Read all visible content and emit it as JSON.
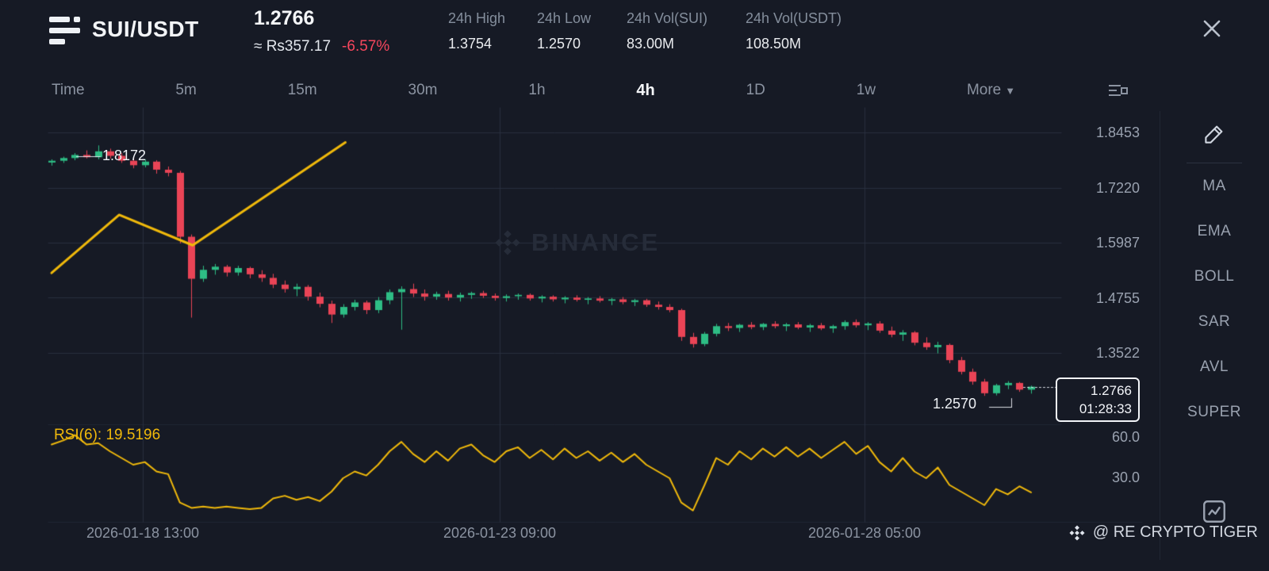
{
  "header": {
    "symbol": "SUI/USDT",
    "price": "1.2766",
    "fiat_price": "≈ Rs357.17",
    "change_pct": "-6.57%",
    "stats": [
      {
        "label": "24h High",
        "value": "1.3754"
      },
      {
        "label": "24h Low",
        "value": "1.2570"
      },
      {
        "label": "24h Vol(SUI)",
        "value": "83.00M"
      },
      {
        "label": "24h Vol(USDT)",
        "value": "108.50M"
      }
    ]
  },
  "timeframes": {
    "items": [
      {
        "label": "Time",
        "active": false
      },
      {
        "label": "5m",
        "active": false
      },
      {
        "label": "15m",
        "active": false
      },
      {
        "label": "30m",
        "active": false
      },
      {
        "label": "1h",
        "active": false
      },
      {
        "label": "4h",
        "active": true
      },
      {
        "label": "1D",
        "active": false
      },
      {
        "label": "1w",
        "active": false
      },
      {
        "label": "More",
        "active": false
      }
    ]
  },
  "chart": {
    "high_label": "1.8172",
    "low_label": "1.2570",
    "price_box": {
      "price": "1.2766",
      "countdown": "01:28:33"
    },
    "watermark": "BINANCE",
    "rsi_label": "RSI(6): 19.5196",
    "y_axis": [
      "1.8453",
      "1.7220",
      "1.5987",
      "1.4755",
      "1.3522"
    ],
    "rsi_axis": [
      "60.0",
      "30.0"
    ],
    "x_axis": [
      "2026-01-18 13:00",
      "2026-01-23 09:00",
      "2026-01-28 05:00"
    ]
  },
  "sidebar": {
    "tools": [
      "MA",
      "EMA",
      "BOLL",
      "SAR",
      "AVL",
      "SUPER"
    ]
  },
  "footer": {
    "credit": "@ RE CRYPTO TIGER"
  },
  "colors": {
    "background": "#161a25",
    "up": "#2ebd85",
    "down": "#ea4456",
    "accent": "#f0b90b",
    "negative": "#f6465d",
    "text_muted": "#848e9c"
  },
  "chart_data": {
    "type": "candlestick",
    "symbol": "SUI/USDT",
    "interval": "4h",
    "legend": [
      "price candles",
      "RSI(6)",
      "drawn trendline"
    ],
    "price_ticks": [
      1.8453,
      1.722,
      1.5987,
      1.4755,
      1.3522
    ],
    "rsi_ticks": [
      60.0,
      30.0
    ],
    "x_tick_labels": [
      "2026-01-18 13:00",
      "2026-01-23 09:00",
      "2026-01-28 05:00"
    ],
    "last_price": 1.2766,
    "low_marker": 1.257,
    "high_marker": 1.8172,
    "countdown": "01:28:33",
    "rsi_period": 6,
    "rsi_value": 19.5196,
    "up_color": "#2ebd85",
    "down_color": "#ea4456",
    "line_color": "#f0b90b",
    "candles_ohlc": [
      [
        1.778,
        1.786,
        1.772,
        1.782
      ],
      [
        1.782,
        1.792,
        1.778,
        1.788
      ],
      [
        1.788,
        1.8,
        1.784,
        1.795
      ],
      [
        1.795,
        1.806,
        1.788,
        1.79
      ],
      [
        1.79,
        1.8172,
        1.786,
        1.803
      ],
      [
        1.803,
        1.81,
        1.788,
        1.793
      ],
      [
        1.793,
        1.8,
        1.778,
        1.782
      ],
      [
        1.782,
        1.79,
        1.766,
        1.772
      ],
      [
        1.772,
        1.786,
        1.768,
        1.78
      ],
      [
        1.78,
        1.784,
        1.754,
        1.762
      ],
      [
        1.762,
        1.77,
        1.748,
        1.755
      ],
      [
        1.755,
        1.76,
        1.598,
        1.612
      ],
      [
        1.612,
        1.618,
        1.432,
        1.518
      ],
      [
        1.518,
        1.548,
        1.512,
        1.538
      ],
      [
        1.538,
        1.552,
        1.528,
        1.545
      ],
      [
        1.545,
        1.55,
        1.524,
        1.532
      ],
      [
        1.532,
        1.548,
        1.526,
        1.542
      ],
      [
        1.542,
        1.546,
        1.52,
        1.528
      ],
      [
        1.528,
        1.538,
        1.512,
        1.52
      ],
      [
        1.52,
        1.53,
        1.498,
        1.505
      ],
      [
        1.505,
        1.515,
        1.488,
        1.495
      ],
      [
        1.495,
        1.508,
        1.48,
        1.5
      ],
      [
        1.5,
        1.505,
        1.47,
        1.478
      ],
      [
        1.478,
        1.488,
        1.455,
        1.462
      ],
      [
        1.462,
        1.47,
        1.42,
        1.438
      ],
      [
        1.438,
        1.462,
        1.432,
        1.455
      ],
      [
        1.455,
        1.472,
        1.448,
        1.465
      ],
      [
        1.465,
        1.47,
        1.44,
        1.448
      ],
      [
        1.448,
        1.478,
        1.442,
        1.47
      ],
      [
        1.47,
        1.495,
        1.462,
        1.488
      ],
      [
        1.488,
        1.502,
        1.405,
        1.495
      ],
      [
        1.495,
        1.508,
        1.478,
        1.485
      ],
      [
        1.485,
        1.495,
        1.47,
        1.478
      ],
      [
        1.478,
        1.49,
        1.472,
        1.484
      ],
      [
        1.484,
        1.492,
        1.47,
        1.476
      ],
      [
        1.476,
        1.488,
        1.468,
        1.482
      ],
      [
        1.482,
        1.49,
        1.474,
        1.486
      ],
      [
        1.486,
        1.492,
        1.476,
        1.48
      ],
      [
        1.48,
        1.486,
        1.47,
        1.475
      ],
      [
        1.475,
        1.484,
        1.468,
        1.479
      ],
      [
        1.479,
        1.486,
        1.472,
        1.482
      ],
      [
        1.482,
        1.486,
        1.47,
        1.474
      ],
      [
        1.474,
        1.482,
        1.466,
        1.478
      ],
      [
        1.478,
        1.482,
        1.468,
        1.472
      ],
      [
        1.472,
        1.48,
        1.464,
        1.476
      ],
      [
        1.476,
        1.482,
        1.468,
        1.471
      ],
      [
        1.471,
        1.478,
        1.462,
        1.474
      ],
      [
        1.474,
        1.48,
        1.466,
        1.469
      ],
      [
        1.469,
        1.476,
        1.46,
        1.472
      ],
      [
        1.472,
        1.478,
        1.462,
        1.466
      ],
      [
        1.466,
        1.474,
        1.458,
        1.47
      ],
      [
        1.47,
        1.474,
        1.456,
        1.46
      ],
      [
        1.46,
        1.468,
        1.45,
        1.455
      ],
      [
        1.455,
        1.462,
        1.444,
        1.448
      ],
      [
        1.448,
        1.452,
        1.38,
        1.388
      ],
      [
        1.388,
        1.398,
        1.365,
        1.372
      ],
      [
        1.372,
        1.4,
        1.368,
        1.395
      ],
      [
        1.395,
        1.418,
        1.39,
        1.412
      ],
      [
        1.412,
        1.42,
        1.402,
        1.408
      ],
      [
        1.408,
        1.418,
        1.4,
        1.415
      ],
      [
        1.415,
        1.422,
        1.406,
        1.41
      ],
      [
        1.41,
        1.42,
        1.404,
        1.417
      ],
      [
        1.417,
        1.424,
        1.408,
        1.412
      ],
      [
        1.412,
        1.42,
        1.402,
        1.416
      ],
      [
        1.416,
        1.422,
        1.406,
        1.409
      ],
      [
        1.409,
        1.418,
        1.4,
        1.414
      ],
      [
        1.414,
        1.42,
        1.404,
        1.407
      ],
      [
        1.407,
        1.416,
        1.398,
        1.412
      ],
      [
        1.412,
        1.426,
        1.405,
        1.421
      ],
      [
        1.421,
        1.428,
        1.41,
        1.414
      ],
      [
        1.414,
        1.422,
        1.404,
        1.418
      ],
      [
        1.418,
        1.424,
        1.398,
        1.402
      ],
      [
        1.402,
        1.412,
        1.388,
        1.393
      ],
      [
        1.393,
        1.404,
        1.38,
        1.398
      ],
      [
        1.398,
        1.402,
        1.37,
        1.375
      ],
      [
        1.375,
        1.388,
        1.36,
        1.365
      ],
      [
        1.365,
        1.378,
        1.352,
        1.37
      ],
      [
        1.37,
        1.374,
        1.33,
        1.336
      ],
      [
        1.336,
        1.344,
        1.305,
        1.31
      ],
      [
        1.31,
        1.318,
        1.282,
        1.288
      ],
      [
        1.288,
        1.295,
        1.257,
        1.262
      ],
      [
        1.262,
        1.284,
        1.258,
        1.28
      ],
      [
        1.28,
        1.29,
        1.272,
        1.285
      ],
      [
        1.285,
        1.288,
        1.266,
        1.27
      ],
      [
        1.27,
        1.28,
        1.262,
        1.2766
      ]
    ],
    "rsi_series": [
      55,
      58,
      62,
      55,
      56,
      50,
      45,
      40,
      42,
      35,
      33,
      12,
      8,
      9,
      8,
      9,
      8,
      7,
      8,
      15,
      17,
      14,
      16,
      13,
      20,
      30,
      35,
      32,
      40,
      50,
      57,
      48,
      42,
      50,
      43,
      52,
      55,
      47,
      42,
      50,
      53,
      45,
      51,
      44,
      52,
      45,
      50,
      43,
      49,
      42,
      48,
      40,
      35,
      30,
      12,
      6,
      25,
      45,
      40,
      50,
      44,
      52,
      46,
      53,
      46,
      52,
      45,
      51,
      57,
      48,
      54,
      42,
      35,
      45,
      35,
      30,
      38,
      25,
      20,
      15,
      10,
      22,
      18,
      24,
      19.5
    ],
    "trendline_points_index_price": [
      [
        0,
        1.531
      ],
      [
        5.8,
        1.661
      ],
      [
        12.1,
        1.593
      ],
      [
        25.2,
        1.823
      ]
    ]
  }
}
